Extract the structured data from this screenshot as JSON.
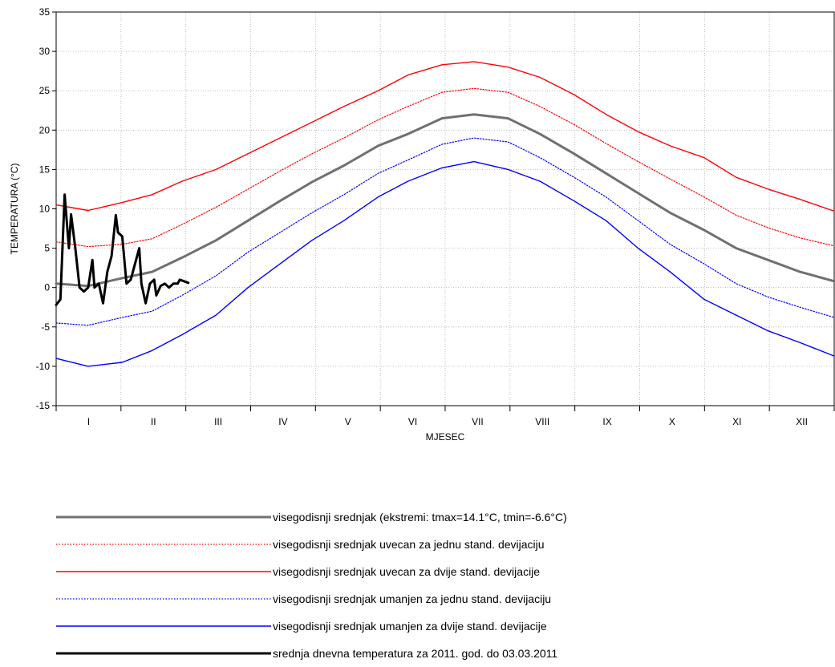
{
  "chart_data": {
    "type": "line",
    "xlabel": "MJESEC",
    "ylabel": "TEMPERATURA (°C)",
    "ylim": [
      -15,
      35
    ],
    "yticks": [
      -15,
      -10,
      -5,
      0,
      5,
      10,
      15,
      20,
      25,
      30,
      35
    ],
    "xlim": [
      0,
      365
    ],
    "month_ticks": [
      "I",
      "II",
      "III",
      "IV",
      "V",
      "VI",
      "VII",
      "VIII",
      "IX",
      "X",
      "XI",
      "XII"
    ],
    "grid": true,
    "legend_position": "below",
    "series": [
      {
        "name": "visegodisnji srednjak (ekstremi: tmax=14.1°C, tmin=-6.6°C)",
        "color": "#707070",
        "style": "solid",
        "width": "thick",
        "x": [
          0,
          15,
          31,
          45,
          59,
          75,
          90,
          105,
          120,
          135,
          151,
          165,
          181,
          196,
          212,
          227,
          243,
          258,
          273,
          288,
          304,
          319,
          334,
          349,
          365
        ],
        "values": [
          0.5,
          0.2,
          1.2,
          2.0,
          3.8,
          6.0,
          8.5,
          11.0,
          13.4,
          15.5,
          18.0,
          19.5,
          21.5,
          22.0,
          21.5,
          19.5,
          17.0,
          14.5,
          12.0,
          9.5,
          7.3,
          5.0,
          3.5,
          2.0,
          0.8
        ]
      },
      {
        "name": "visegodisnji srednjak uvecan za jednu stand. devijaciju",
        "color": "#ff0000",
        "style": "dotted",
        "width": "thin",
        "x": [
          0,
          15,
          31,
          45,
          59,
          75,
          90,
          105,
          120,
          135,
          151,
          165,
          181,
          196,
          212,
          227,
          243,
          258,
          273,
          288,
          304,
          319,
          334,
          349,
          365
        ],
        "values": [
          5.8,
          5.2,
          5.5,
          6.2,
          8.0,
          10.2,
          12.5,
          14.8,
          17.0,
          19.0,
          21.3,
          23.0,
          24.8,
          25.3,
          24.8,
          23.0,
          20.7,
          18.3,
          16.0,
          13.8,
          11.5,
          9.2,
          7.6,
          6.3,
          5.3
        ]
      },
      {
        "name": "visegodisnji srednjak uvecan za dvije  stand. devijacije",
        "color": "#ff0000",
        "style": "solid",
        "width": "thin",
        "x": [
          0,
          15,
          31,
          45,
          59,
          75,
          90,
          105,
          120,
          135,
          151,
          165,
          181,
          196,
          212,
          227,
          243,
          258,
          273,
          288,
          304,
          319,
          334,
          349,
          365
        ],
        "values": [
          10.5,
          9.8,
          10.8,
          11.8,
          13.5,
          15.0,
          17.0,
          19.0,
          21.0,
          23.0,
          25.0,
          27.0,
          28.3,
          28.7,
          28.0,
          26.7,
          24.5,
          22.0,
          19.8,
          18.0,
          16.5,
          14.0,
          12.5,
          11.2,
          9.7
        ]
      },
      {
        "name": "visegodisnji srednjak umanjen za jednu stand. devijaciju",
        "color": "#0000ff",
        "style": "dotted",
        "width": "thin",
        "x": [
          0,
          15,
          31,
          45,
          59,
          75,
          90,
          105,
          120,
          135,
          151,
          165,
          181,
          196,
          212,
          227,
          243,
          258,
          273,
          288,
          304,
          319,
          334,
          349,
          365
        ],
        "values": [
          -4.5,
          -4.8,
          -3.8,
          -3.0,
          -1.0,
          1.5,
          4.5,
          7.0,
          9.5,
          11.8,
          14.5,
          16.2,
          18.2,
          19.0,
          18.5,
          16.5,
          14.0,
          11.5,
          8.5,
          5.5,
          3.0,
          0.5,
          -1.2,
          -2.5,
          -3.8
        ]
      },
      {
        "name": "visegodisnji srednjak umanjen za dvije stand. devijacije",
        "color": "#0000ff",
        "style": "solid",
        "width": "thin",
        "x": [
          0,
          15,
          31,
          45,
          59,
          75,
          90,
          105,
          120,
          135,
          151,
          165,
          181,
          196,
          212,
          227,
          243,
          258,
          273,
          288,
          304,
          319,
          334,
          349,
          365
        ],
        "values": [
          -9.0,
          -10.0,
          -9.5,
          -8.0,
          -6.0,
          -3.5,
          0.0,
          3.0,
          6.0,
          8.5,
          11.5,
          13.5,
          15.2,
          16.0,
          15.0,
          13.5,
          11.0,
          8.5,
          5.0,
          2.0,
          -1.5,
          -3.5,
          -5.5,
          -7.0,
          -8.7
        ]
      },
      {
        "name": "srednja dnevna temperatura za 2011. god. do 03.03.2011",
        "color": "#000000",
        "style": "solid",
        "width": "thick",
        "x": [
          0,
          2,
          4,
          6,
          7,
          9,
          11,
          13,
          15,
          17,
          18,
          20,
          22,
          24,
          26,
          28,
          29,
          31,
          33,
          35,
          37,
          39,
          40,
          42,
          44,
          46,
          47,
          49,
          51,
          53,
          55,
          57,
          58,
          60,
          62
        ],
        "values": [
          -2.2,
          -1.5,
          11.8,
          5.0,
          9.3,
          5.0,
          0.0,
          -0.5,
          0.0,
          3.5,
          0.0,
          0.5,
          -2.0,
          2.0,
          4.0,
          9.2,
          7.0,
          6.5,
          0.5,
          1.0,
          3.0,
          5.0,
          0.5,
          -2.0,
          0.5,
          1.0,
          -1.0,
          0.2,
          0.5,
          0.0,
          0.5,
          0.5,
          1.0,
          0.8,
          0.6
        ]
      }
    ]
  }
}
